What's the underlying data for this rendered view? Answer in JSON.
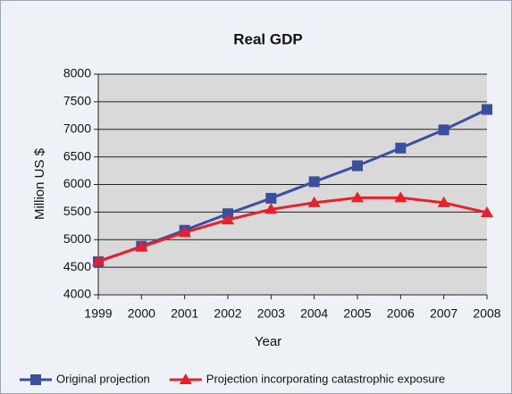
{
  "chart_data": {
    "type": "line",
    "title": "Real GDP",
    "x_label": "Year",
    "y_label": "Million US $",
    "categories": [
      "1999",
      "2000",
      "2001",
      "2002",
      "2003",
      "2004",
      "2005",
      "2006",
      "2007",
      "2008"
    ],
    "series": [
      {
        "name": "Original projection",
        "color": "#3a4fa0",
        "marker": "square",
        "values": [
          4600,
          4880,
          5170,
          5470,
          5750,
          6050,
          6340,
          6660,
          6990,
          7360
        ]
      },
      {
        "name": "Projection incorporating catastrophic exposure",
        "color": "#e8202a",
        "marker": "triangle",
        "values": [
          4610,
          4870,
          5130,
          5360,
          5550,
          5670,
          5760,
          5760,
          5670,
          5490
        ]
      }
    ],
    "ylim": [
      4000,
      8000
    ],
    "yticks": [
      4000,
      4500,
      5000,
      5500,
      6000,
      6500,
      7000,
      7500,
      8000
    ],
    "grid": true,
    "legend": "bottom"
  }
}
